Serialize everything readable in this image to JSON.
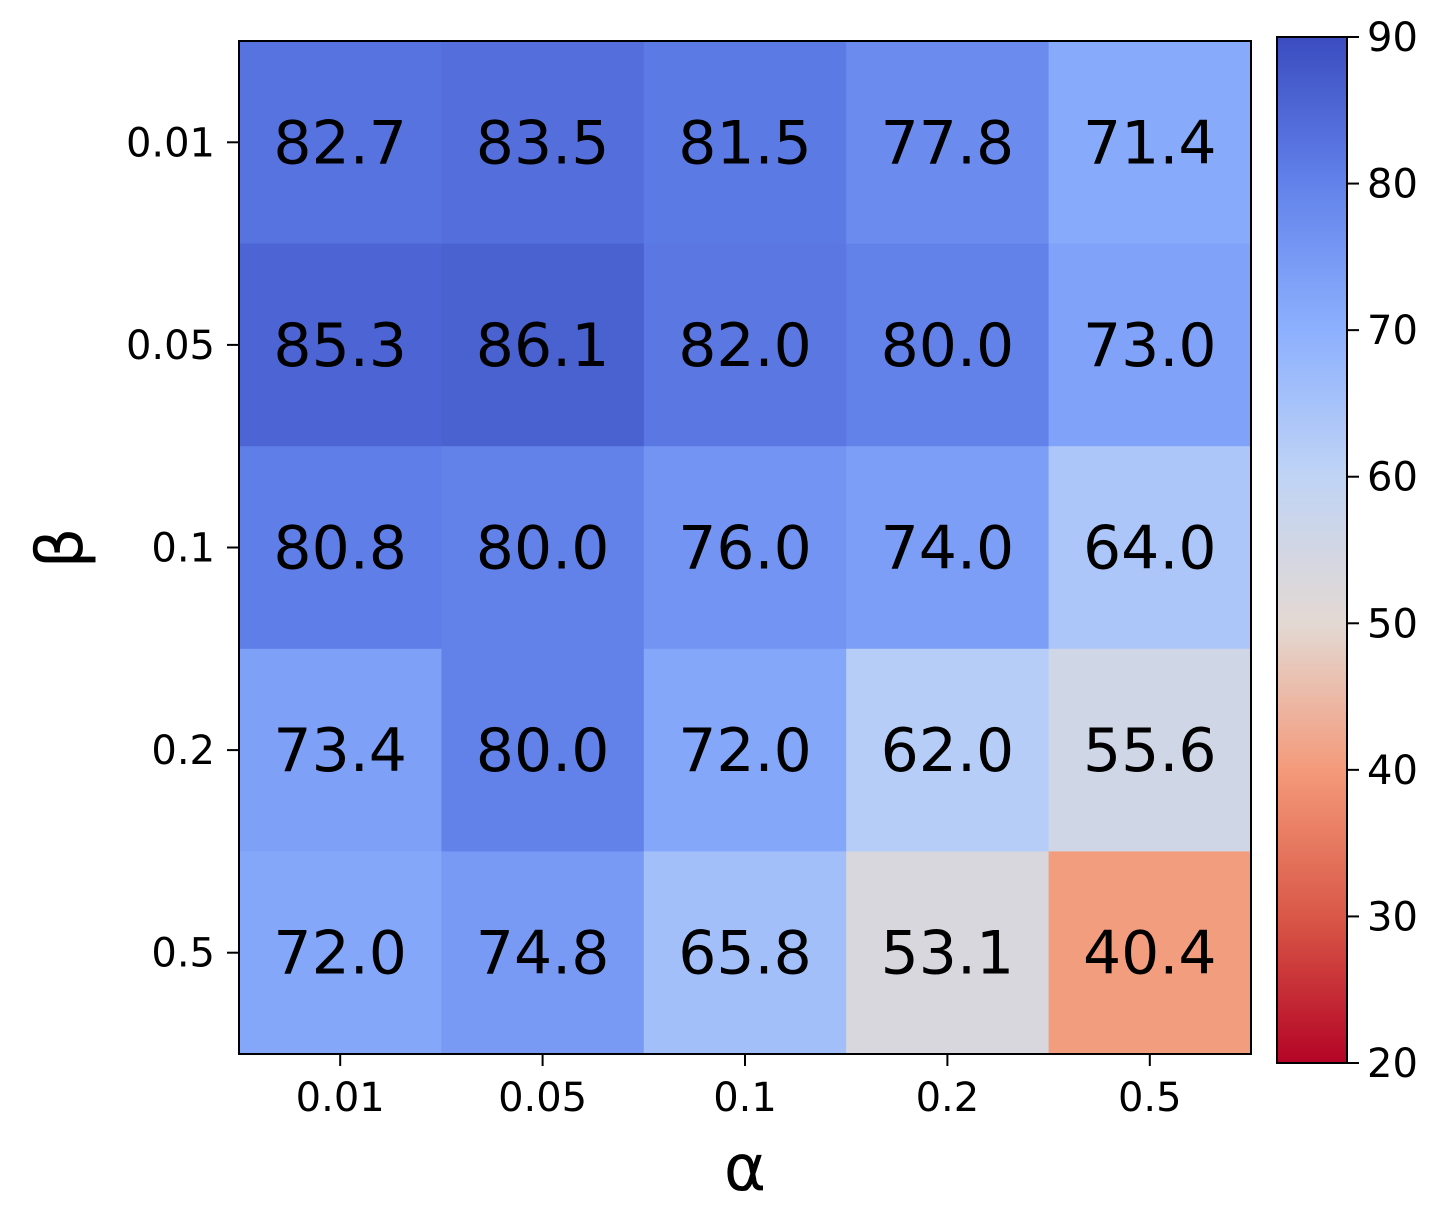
{
  "chart_data": {
    "type": "heatmap",
    "xlabel": "α",
    "ylabel": "β",
    "x_categories": [
      "0.01",
      "0.05",
      "0.1",
      "0.2",
      "0.5"
    ],
    "y_categories": [
      "0.01",
      "0.05",
      "0.1",
      "0.2",
      "0.5"
    ],
    "values": [
      [
        82.7,
        83.5,
        81.5,
        77.8,
        71.4
      ],
      [
        85.3,
        86.1,
        82.0,
        80.0,
        73.0
      ],
      [
        80.8,
        80.0,
        76.0,
        74.0,
        64.0
      ],
      [
        73.4,
        80.0,
        72.0,
        62.0,
        55.6
      ],
      [
        72.0,
        74.8,
        65.8,
        53.1,
        40.4
      ]
    ],
    "value_labels": [
      [
        "82.7",
        "83.5",
        "81.5",
        "77.8",
        "71.4"
      ],
      [
        "85.3",
        "86.1",
        "82.0",
        "80.0",
        "73.0"
      ],
      [
        "80.8",
        "80.0",
        "76.0",
        "74.0",
        "64.0"
      ],
      [
        "73.4",
        "80.0",
        "72.0",
        "62.0",
        "55.6"
      ],
      [
        "72.0",
        "74.8",
        "65.8",
        "53.1",
        "40.4"
      ]
    ],
    "colormap": "coolwarm_r",
    "colorbar": {
      "range": [
        20,
        90
      ],
      "ticks": [
        "20",
        "30",
        "40",
        "50",
        "60",
        "70",
        "80",
        "90"
      ],
      "colors": [
        "#b40426",
        "#d95847",
        "#f49a7b",
        "#e3d9d3",
        "#c0d4f5",
        "#8db0fe",
        "#6282ea",
        "#3b4cc0"
      ]
    }
  }
}
